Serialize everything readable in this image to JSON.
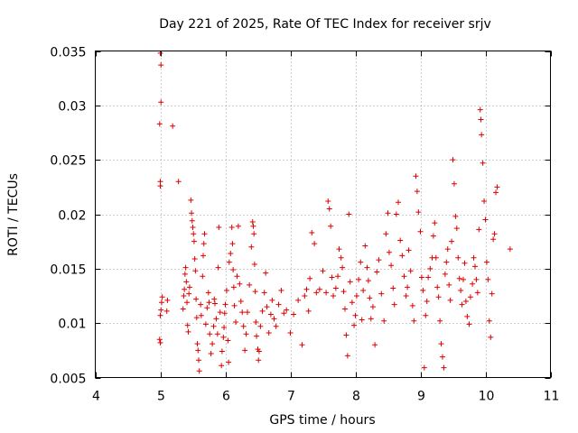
{
  "chart_data": {
    "type": "scatter",
    "title": "Day 221 of 2025, Rate Of TEC Index for receiver srjv",
    "xlabel": "GPS time / hours",
    "ylabel": "ROTI / TECUs",
    "xlim": [
      4,
      11
    ],
    "ylim": [
      0.005,
      0.035
    ],
    "xticks": [
      4,
      5,
      6,
      7,
      8,
      9,
      10,
      11
    ],
    "xtick_labels": [
      "4",
      "5",
      "6",
      "7",
      "8",
      "9",
      "10",
      "11"
    ],
    "yticks": [
      0.005,
      0.01,
      0.015,
      0.02,
      0.025,
      0.03,
      0.035
    ],
    "ytick_labels": [
      "0.005",
      "0.01",
      "0.015",
      "0.02",
      "0.025",
      "0.03",
      "0.035"
    ],
    "grid": true,
    "marker": "+",
    "color": "#dd0000",
    "series": [
      {
        "name": "ROTI",
        "points": [
          [
            5.0,
            0.0348
          ],
          [
            5.01,
            0.0337
          ],
          [
            5.01,
            0.0303
          ],
          [
            4.99,
            0.0283
          ],
          [
            5.0,
            0.023
          ],
          [
            5.0,
            0.0226
          ],
          [
            5.19,
            0.0281
          ],
          [
            5.28,
            0.023
          ],
          [
            4.99,
            0.0085
          ],
          [
            5.0,
            0.0082
          ],
          [
            5.0,
            0.0107
          ],
          [
            5.01,
            0.0112
          ],
          [
            5.02,
            0.0119
          ],
          [
            5.03,
            0.0124
          ],
          [
            5.1,
            0.0111
          ],
          [
            5.11,
            0.0121
          ],
          [
            5.35,
            0.0113
          ],
          [
            5.36,
            0.0125
          ],
          [
            5.37,
            0.0131
          ],
          [
            5.38,
            0.0145
          ],
          [
            5.39,
            0.0151
          ],
          [
            5.4,
            0.0138
          ],
          [
            5.41,
            0.0119
          ],
          [
            5.42,
            0.0098
          ],
          [
            5.43,
            0.0092
          ],
          [
            5.44,
            0.0127
          ],
          [
            5.45,
            0.0133
          ],
          [
            5.47,
            0.0213
          ],
          [
            5.48,
            0.0201
          ],
          [
            5.49,
            0.0194
          ],
          [
            5.5,
            0.0188
          ],
          [
            5.51,
            0.0182
          ],
          [
            5.52,
            0.0175
          ],
          [
            5.53,
            0.0159
          ],
          [
            5.54,
            0.0148
          ],
          [
            5.55,
            0.0122
          ],
          [
            5.56,
            0.0105
          ],
          [
            5.57,
            0.0081
          ],
          [
            5.58,
            0.0075
          ],
          [
            5.59,
            0.0066
          ],
          [
            5.6,
            0.0056
          ],
          [
            5.62,
            0.0117
          ],
          [
            5.63,
            0.0107
          ],
          [
            5.65,
            0.0143
          ],
          [
            5.66,
            0.0162
          ],
          [
            5.67,
            0.0173
          ],
          [
            5.68,
            0.0182
          ],
          [
            5.7,
            0.0099
          ],
          [
            5.72,
            0.0114
          ],
          [
            5.74,
            0.0128
          ],
          [
            5.75,
            0.0119
          ],
          [
            5.76,
            0.009
          ],
          [
            5.78,
            0.0072
          ],
          [
            5.8,
            0.0081
          ],
          [
            5.82,
            0.0097
          ],
          [
            5.83,
            0.0122
          ],
          [
            5.84,
            0.0118
          ],
          [
            5.86,
            0.0104
          ],
          [
            5.88,
            0.009
          ],
          [
            5.89,
            0.0151
          ],
          [
            5.9,
            0.0188
          ],
          [
            5.92,
            0.011
          ],
          [
            5.94,
            0.0061
          ],
          [
            5.95,
            0.0074
          ],
          [
            5.97,
            0.0087
          ],
          [
            5.98,
            0.0096
          ],
          [
            5.99,
            0.0109
          ],
          [
            6.0,
            0.0117
          ],
          [
            6.02,
            0.013
          ],
          [
            6.04,
            0.0084
          ],
          [
            6.05,
            0.0064
          ],
          [
            6.06,
            0.0156
          ],
          [
            6.08,
            0.0164
          ],
          [
            6.1,
            0.0188
          ],
          [
            6.11,
            0.0173
          ],
          [
            6.12,
            0.0149
          ],
          [
            6.13,
            0.0133
          ],
          [
            6.14,
            0.0116
          ],
          [
            6.16,
            0.0101
          ],
          [
            6.18,
            0.0143
          ],
          [
            6.2,
            0.0189
          ],
          [
            6.22,
            0.0136
          ],
          [
            6.24,
            0.012
          ],
          [
            6.26,
            0.011
          ],
          [
            6.28,
            0.0097
          ],
          [
            6.3,
            0.0075
          ],
          [
            6.32,
            0.009
          ],
          [
            6.34,
            0.011
          ],
          [
            6.37,
            0.0135
          ],
          [
            6.4,
            0.017
          ],
          [
            6.42,
            0.0193
          ],
          [
            6.43,
            0.0189
          ],
          [
            6.44,
            0.0182
          ],
          [
            6.45,
            0.0154
          ],
          [
            6.46,
            0.0129
          ],
          [
            6.47,
            0.0101
          ],
          [
            6.48,
            0.0088
          ],
          [
            6.5,
            0.0076
          ],
          [
            6.51,
            0.0066
          ],
          [
            6.52,
            0.0074
          ],
          [
            6.54,
            0.0097
          ],
          [
            6.57,
            0.0111
          ],
          [
            6.6,
            0.0128
          ],
          [
            6.62,
            0.0146
          ],
          [
            6.64,
            0.0115
          ],
          [
            6.67,
            0.0091
          ],
          [
            6.7,
            0.0108
          ],
          [
            6.72,
            0.0121
          ],
          [
            6.75,
            0.0104
          ],
          [
            6.78,
            0.0097
          ],
          [
            6.82,
            0.0117
          ],
          [
            6.86,
            0.013
          ],
          [
            6.9,
            0.0109
          ],
          [
            6.94,
            0.0112
          ],
          [
            7.0,
            0.0091
          ],
          [
            7.05,
            0.0108
          ],
          [
            7.12,
            0.0121
          ],
          [
            7.18,
            0.008
          ],
          [
            7.22,
            0.0125
          ],
          [
            7.25,
            0.0131
          ],
          [
            7.28,
            0.0111
          ],
          [
            7.3,
            0.0141
          ],
          [
            7.33,
            0.0183
          ],
          [
            7.37,
            0.0173
          ],
          [
            7.4,
            0.0128
          ],
          [
            7.45,
            0.0131
          ],
          [
            7.5,
            0.0148
          ],
          [
            7.55,
            0.0128
          ],
          [
            7.58,
            0.0212
          ],
          [
            7.6,
            0.0205
          ],
          [
            7.62,
            0.0189
          ],
          [
            7.64,
            0.0142
          ],
          [
            7.66,
            0.0125
          ],
          [
            7.7,
            0.0132
          ],
          [
            7.73,
            0.0143
          ],
          [
            7.75,
            0.0168
          ],
          [
            7.78,
            0.016
          ],
          [
            7.8,
            0.0151
          ],
          [
            7.82,
            0.0129
          ],
          [
            7.84,
            0.0113
          ],
          [
            7.86,
            0.0089
          ],
          [
            7.88,
            0.007
          ],
          [
            7.9,
            0.02
          ],
          [
            7.92,
            0.0138
          ],
          [
            7.95,
            0.0119
          ],
          [
            7.98,
            0.0098
          ],
          [
            8.0,
            0.0107
          ],
          [
            8.02,
            0.0125
          ],
          [
            8.05,
            0.014
          ],
          [
            8.08,
            0.0156
          ],
          [
            8.1,
            0.0103
          ],
          [
            8.12,
            0.013
          ],
          [
            8.15,
            0.0171
          ],
          [
            8.18,
            0.0151
          ],
          [
            8.2,
            0.0139
          ],
          [
            8.22,
            0.0123
          ],
          [
            8.24,
            0.0104
          ],
          [
            8.27,
            0.0115
          ],
          [
            8.3,
            0.008
          ],
          [
            8.33,
            0.0147
          ],
          [
            8.36,
            0.0158
          ],
          [
            8.4,
            0.0127
          ],
          [
            8.44,
            0.0102
          ],
          [
            8.47,
            0.0182
          ],
          [
            8.5,
            0.0201
          ],
          [
            8.52,
            0.0165
          ],
          [
            8.55,
            0.0153
          ],
          [
            8.58,
            0.0132
          ],
          [
            8.6,
            0.0117
          ],
          [
            8.63,
            0.02
          ],
          [
            8.66,
            0.0211
          ],
          [
            8.69,
            0.0176
          ],
          [
            8.72,
            0.0162
          ],
          [
            8.75,
            0.0143
          ],
          [
            8.78,
            0.0125
          ],
          [
            8.8,
            0.0133
          ],
          [
            8.82,
            0.0167
          ],
          [
            8.85,
            0.0148
          ],
          [
            8.88,
            0.0116
          ],
          [
            8.9,
            0.0102
          ],
          [
            8.93,
            0.0235
          ],
          [
            8.95,
            0.0221
          ],
          [
            8.97,
            0.0202
          ],
          [
            9.0,
            0.0184
          ],
          [
            9.02,
            0.0142
          ],
          [
            9.04,
            0.013
          ],
          [
            9.06,
            0.0059
          ],
          [
            9.08,
            0.0107
          ],
          [
            9.1,
            0.012
          ],
          [
            9.12,
            0.0142
          ],
          [
            9.15,
            0.015
          ],
          [
            9.18,
            0.016
          ],
          [
            9.2,
            0.018
          ],
          [
            9.22,
            0.0192
          ],
          [
            9.24,
            0.016
          ],
          [
            9.26,
            0.0133
          ],
          [
            9.28,
            0.0124
          ],
          [
            9.3,
            0.0102
          ],
          [
            9.32,
            0.0081
          ],
          [
            9.34,
            0.0069
          ],
          [
            9.36,
            0.0059
          ],
          [
            9.38,
            0.0145
          ],
          [
            9.4,
            0.0156
          ],
          [
            9.42,
            0.0168
          ],
          [
            9.44,
            0.0135
          ],
          [
            9.46,
            0.0121
          ],
          [
            9.48,
            0.0175
          ],
          [
            9.5,
            0.025
          ],
          [
            9.52,
            0.0228
          ],
          [
            9.54,
            0.0198
          ],
          [
            9.56,
            0.0187
          ],
          [
            9.58,
            0.016
          ],
          [
            9.6,
            0.0141
          ],
          [
            9.62,
            0.013
          ],
          [
            9.64,
            0.0117
          ],
          [
            9.66,
            0.014
          ],
          [
            9.68,
            0.0155
          ],
          [
            9.7,
            0.012
          ],
          [
            9.72,
            0.0106
          ],
          [
            9.75,
            0.0099
          ],
          [
            9.77,
            0.0124
          ],
          [
            9.8,
            0.0136
          ],
          [
            9.82,
            0.016
          ],
          [
            9.84,
            0.0152
          ],
          [
            9.86,
            0.014
          ],
          [
            9.88,
            0.0128
          ],
          [
            9.9,
            0.0186
          ],
          [
            9.92,
            0.0296
          ],
          [
            9.93,
            0.0287
          ],
          [
            9.94,
            0.0273
          ],
          [
            9.96,
            0.0247
          ],
          [
            9.98,
            0.0212
          ],
          [
            10.0,
            0.0195
          ],
          [
            10.02,
            0.0156
          ],
          [
            10.04,
            0.014
          ],
          [
            10.06,
            0.0102
          ],
          [
            10.08,
            0.0087
          ],
          [
            10.1,
            0.0127
          ],
          [
            10.12,
            0.0177
          ],
          [
            10.14,
            0.0182
          ],
          [
            10.16,
            0.022
          ],
          [
            10.18,
            0.0225
          ],
          [
            10.38,
            0.0168
          ]
        ]
      }
    ]
  }
}
